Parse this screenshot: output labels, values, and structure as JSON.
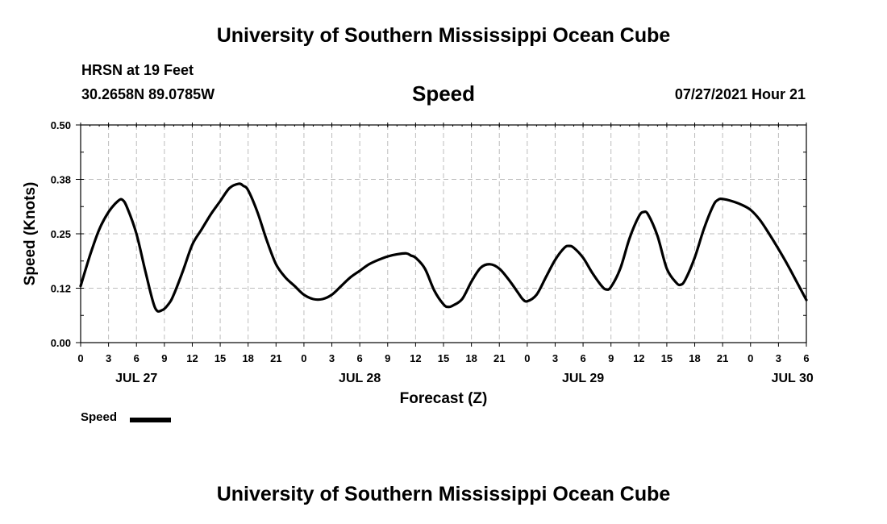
{
  "header": {
    "top_title": "University of Southern Mississippi Ocean Cube",
    "station": "HRSN at 19 Feet",
    "coords": "30.2658N  89.0785W",
    "timestamp": "07/27/2021 Hour 21"
  },
  "footer": {
    "bottom_title": "University of Southern Mississippi Ocean Cube"
  },
  "legend": {
    "label": "Speed"
  },
  "chart_data": {
    "type": "line",
    "title": "Speed",
    "xlabel": "Forecast (Z)",
    "ylabel": "Speed (Knots)",
    "ylim": [
      0.0,
      0.5
    ],
    "xlim": [
      0,
      78
    ],
    "x_unit": "hours since JUL 27 00Z",
    "grid": true,
    "yticks": [
      {
        "value": 0.0,
        "label": "0.00"
      },
      {
        "value": 0.125,
        "label": "0.12"
      },
      {
        "value": 0.25,
        "label": "0.25"
      },
      {
        "value": 0.375,
        "label": "0.38"
      },
      {
        "value": 0.5,
        "label": "0.50"
      }
    ],
    "xticks": [
      {
        "hour": 0,
        "label": "0"
      },
      {
        "hour": 3,
        "label": "3"
      },
      {
        "hour": 6,
        "label": "6"
      },
      {
        "hour": 9,
        "label": "9"
      },
      {
        "hour": 12,
        "label": "12"
      },
      {
        "hour": 15,
        "label": "15"
      },
      {
        "hour": 18,
        "label": "18"
      },
      {
        "hour": 21,
        "label": "21"
      },
      {
        "hour": 24,
        "label": "0"
      },
      {
        "hour": 27,
        "label": "3"
      },
      {
        "hour": 30,
        "label": "6"
      },
      {
        "hour": 33,
        "label": "9"
      },
      {
        "hour": 36,
        "label": "12"
      },
      {
        "hour": 39,
        "label": "15"
      },
      {
        "hour": 42,
        "label": "18"
      },
      {
        "hour": 45,
        "label": "21"
      },
      {
        "hour": 48,
        "label": "0"
      },
      {
        "hour": 51,
        "label": "3"
      },
      {
        "hour": 54,
        "label": "6"
      },
      {
        "hour": 57,
        "label": "9"
      },
      {
        "hour": 60,
        "label": "12"
      },
      {
        "hour": 63,
        "label": "15"
      },
      {
        "hour": 66,
        "label": "18"
      },
      {
        "hour": 69,
        "label": "21"
      },
      {
        "hour": 72,
        "label": "0"
      },
      {
        "hour": 75,
        "label": "3"
      },
      {
        "hour": 78,
        "label": "6"
      }
    ],
    "date_labels": [
      {
        "hour": 6,
        "label": "JUL 27"
      },
      {
        "hour": 30,
        "label": "JUL 28"
      },
      {
        "hour": 54,
        "label": "JUL 29"
      },
      {
        "hour": 76.5,
        "label": "JUL 30"
      }
    ],
    "series": [
      {
        "name": "Speed",
        "color": "#000000",
        "x": [
          0,
          1,
          2,
          3,
          4,
          4.5,
          5,
          6,
          7,
          8,
          8.8,
          9.5,
          10,
          11,
          12,
          13,
          14,
          15,
          16,
          17,
          17.5,
          18,
          19,
          20,
          21,
          22,
          23,
          24,
          25,
          26,
          27,
          28,
          29,
          30,
          31,
          32,
          33,
          34,
          35,
          35.5,
          36,
          37,
          38,
          39,
          39.5,
          40,
          41,
          42,
          43,
          44,
          45,
          46,
          47,
          47.5,
          48,
          49,
          50,
          51,
          52,
          52.5,
          53,
          54,
          55,
          56,
          56.5,
          57,
          58,
          59,
          60,
          60.5,
          61,
          62,
          63,
          64,
          64.5,
          65,
          66,
          67,
          68,
          68.5,
          69,
          70,
          71,
          72,
          73,
          74,
          75,
          76,
          77,
          78
        ],
        "values": [
          0.13,
          0.2,
          0.26,
          0.3,
          0.325,
          0.328,
          0.31,
          0.25,
          0.16,
          0.08,
          0.075,
          0.09,
          0.11,
          0.165,
          0.225,
          0.26,
          0.295,
          0.325,
          0.355,
          0.365,
          0.36,
          0.35,
          0.3,
          0.235,
          0.18,
          0.15,
          0.13,
          0.11,
          0.1,
          0.1,
          0.11,
          0.13,
          0.15,
          0.165,
          0.18,
          0.19,
          0.198,
          0.203,
          0.205,
          0.2,
          0.195,
          0.17,
          0.12,
          0.088,
          0.082,
          0.085,
          0.1,
          0.14,
          0.172,
          0.18,
          0.17,
          0.145,
          0.115,
          0.1,
          0.095,
          0.11,
          0.15,
          0.19,
          0.218,
          0.222,
          0.218,
          0.195,
          0.16,
          0.13,
          0.122,
          0.128,
          0.17,
          0.24,
          0.29,
          0.3,
          0.294,
          0.245,
          0.17,
          0.138,
          0.133,
          0.145,
          0.195,
          0.262,
          0.315,
          0.328,
          0.33,
          0.325,
          0.317,
          0.305,
          0.282,
          0.25,
          0.215,
          0.178,
          0.138,
          0.098
        ]
      }
    ]
  }
}
